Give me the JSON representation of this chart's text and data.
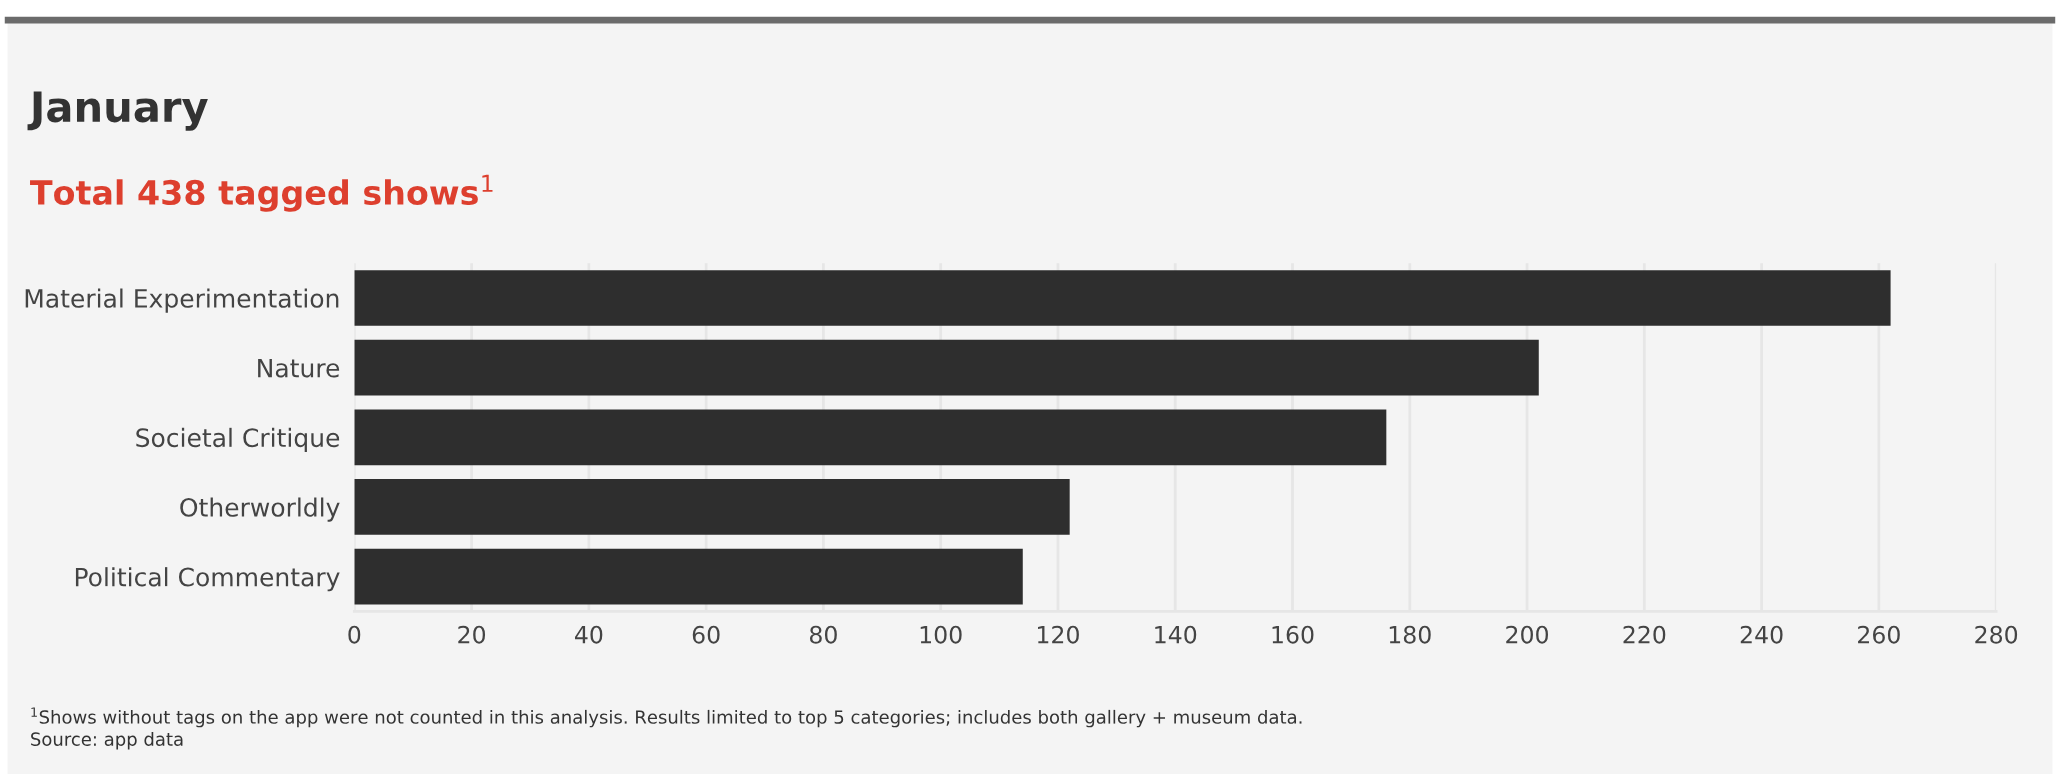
{
  "chart_data": {
    "type": "bar",
    "orientation": "horizontal",
    "title": "January",
    "subtitle": "Total 438 tagged shows$^{1}$",
    "categories": [
      "Material Experimentation",
      "Nature",
      "Societal Critique",
      "Otherworldly",
      "Political Commentary"
    ],
    "values": [
      262,
      202,
      176,
      122,
      114
    ],
    "color": "#2e2e2e",
    "xlim": [
      0,
      280
    ],
    "xticks": [
      0,
      20,
      40,
      60,
      80,
      100,
      120,
      140,
      160,
      180,
      200,
      220,
      240,
      260,
      280
    ],
    "grid": "x",
    "annotations": [
      "$^{1}$Shows without tags on the app were not counted in this analysis. Results limited to top 5 categories; includes both gallery + museum data.",
      "Source: app data"
    ]
  }
}
